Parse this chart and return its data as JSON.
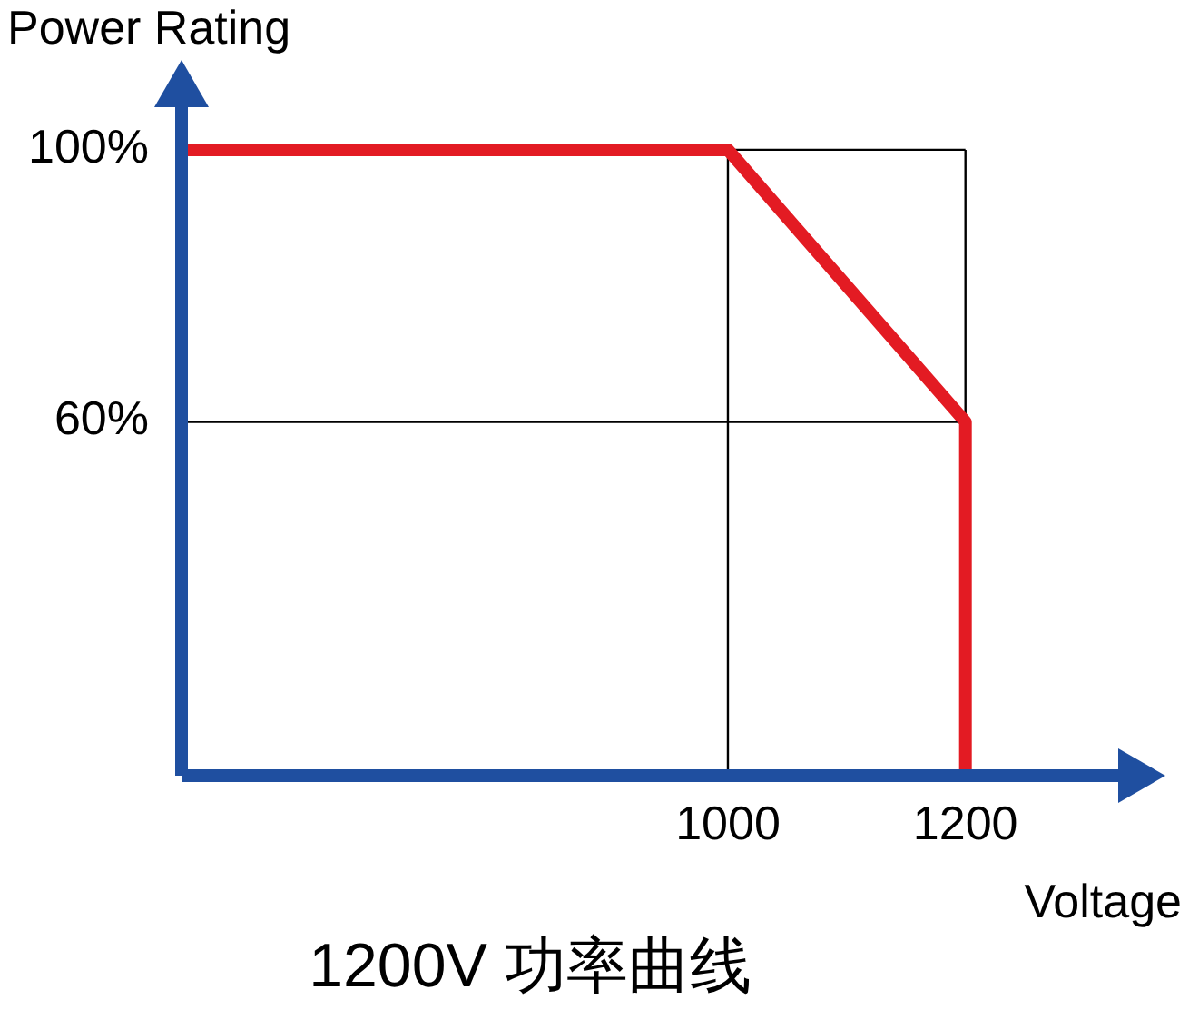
{
  "chart_data": {
    "type": "line",
    "title": "1200V 功率曲线",
    "xlabel": "Voltage",
    "ylabel": "Power Rating",
    "x": [
      540,
      1000,
      1200,
      1200
    ],
    "series": [
      {
        "color": "#e31b23",
        "values": [
          100,
          100,
          60,
          8
        ]
      }
    ],
    "xlim": [
      540,
      1350
    ],
    "ylim": [
      8,
      110
    ],
    "xticks": [
      1000,
      1200
    ],
    "yticks": [
      {
        "value": 60,
        "label": "60%"
      },
      {
        "value": 100,
        "label": "100%"
      }
    ],
    "grid": true,
    "marker": "none",
    "line_style": "solid"
  }
}
